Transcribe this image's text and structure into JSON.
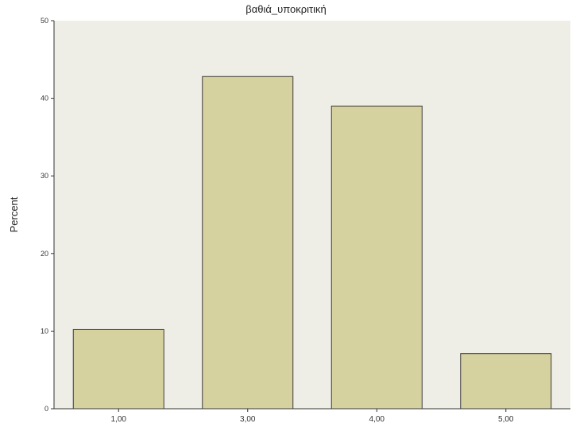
{
  "chart_data": {
    "type": "bar",
    "title": "βαθιά_υποκριτική",
    "ylabel": "Percent",
    "xlabel": "",
    "categories": [
      "1,00",
      "3,00",
      "4,00",
      "5,00"
    ],
    "values": [
      10.2,
      42.8,
      39.0,
      7.1
    ],
    "ylim": [
      0,
      50
    ],
    "yticks": [
      0,
      10,
      20,
      30,
      40,
      50
    ],
    "grid": false,
    "colors": {
      "plot_background": "#eeeee6",
      "bar_fill": "#d6d2a0",
      "bar_stroke": "#3a3a3a"
    }
  }
}
